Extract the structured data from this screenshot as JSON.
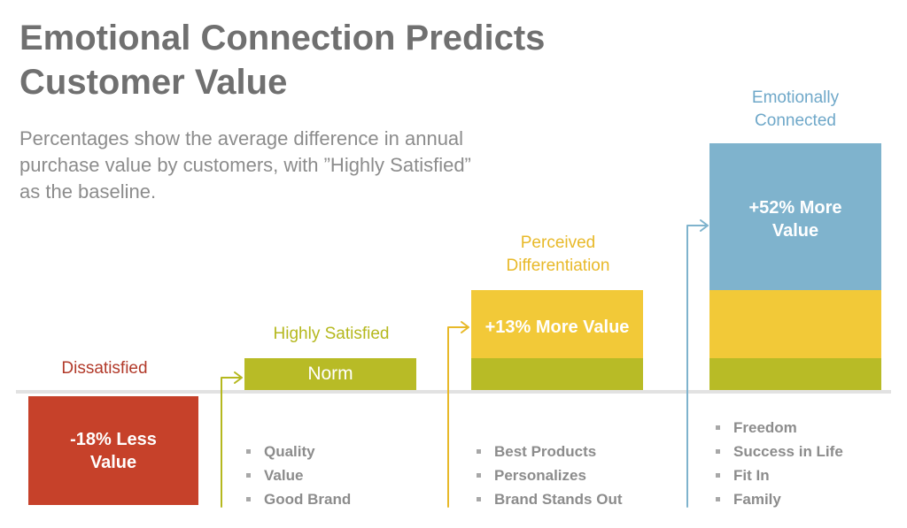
{
  "title": [
    "Emotional Connection Predicts",
    "Customer Value"
  ],
  "subtitle": [
    "Percentages show the average difference in annual",
    "purchase value by customers, with ”Highly Satisfied”",
    "as the baseline."
  ],
  "colors": {
    "dissatisfied": "#c6412a",
    "satisfied": "#b8bb26",
    "differentiation": "#f2c938",
    "connected": "#7fb3cd",
    "dissatisfied_label": "#b23a2a",
    "satisfied_label": "#b5b81e",
    "differentiation_label": "#e8b929",
    "connected_label": "#6fa8c9"
  },
  "chart_data": {
    "type": "bar",
    "title": "Emotional Connection Predicts Customer Value",
    "baseline": "Highly Satisfied",
    "categories": [
      "Dissatisfied",
      "Highly Satisfied",
      "Perceived Differentiation",
      "Emotionally Connected"
    ],
    "values_percent_vs_baseline": [
      -18,
      0,
      13,
      52
    ],
    "bar_text": [
      "-18% Less Value",
      "Norm",
      "+13% More Value",
      "+52% More Value"
    ],
    "drivers": [
      [],
      [
        "Quality",
        "Value",
        "Good Brand"
      ],
      [
        "Best Products",
        "Personalizes",
        "Brand Stands Out"
      ],
      [
        "Freedom",
        "Success in Life",
        "Fit In",
        "Family"
      ]
    ]
  },
  "labels": {
    "dissatisfied": "Dissatisfied",
    "satisfied": "Highly Satisfied",
    "differentiation": [
      "Perceived",
      "Differentiation"
    ],
    "connected": [
      "Emotionally",
      "Connected"
    ]
  },
  "bar_text": {
    "dissatisfied": [
      "-18% Less",
      "Value"
    ],
    "satisfied": "Norm",
    "differentiation": "+13% More Value",
    "connected": [
      "+52% More",
      "Value"
    ]
  },
  "bullets": {
    "satisfied": [
      "Quality",
      "Value",
      "Good Brand"
    ],
    "differentiation": [
      "Best Products",
      "Personalizes",
      "Brand Stands Out"
    ],
    "connected": [
      "Freedom",
      "Success in Life",
      "Fit In",
      "Family"
    ]
  }
}
